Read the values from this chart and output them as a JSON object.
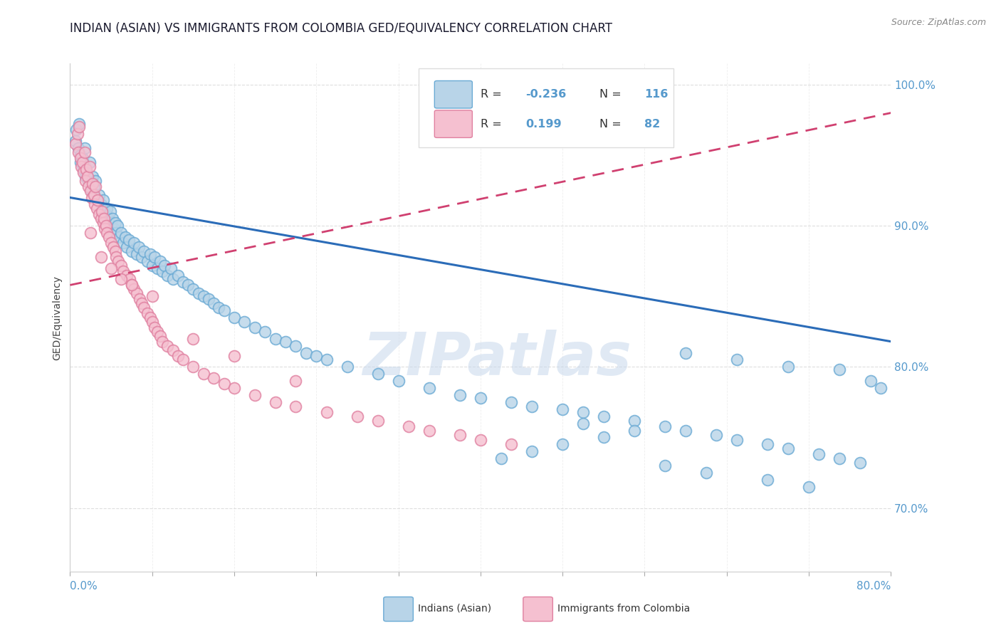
{
  "title": "INDIAN (ASIAN) VS IMMIGRANTS FROM COLOMBIA GED/EQUIVALENCY CORRELATION CHART",
  "source_text": "Source: ZipAtlas.com",
  "ylabel_label": "GED/Equivalency",
  "blue_label": "Indians (Asian)",
  "pink_label": "Immigrants from Colombia",
  "R_blue": "-0.236",
  "N_blue": "116",
  "R_pink": "0.199",
  "N_pink": "82",
  "blue_scatter_x": [
    0.005,
    0.006,
    0.008,
    0.009,
    0.01,
    0.01,
    0.012,
    0.013,
    0.014,
    0.015,
    0.015,
    0.016,
    0.018,
    0.019,
    0.02,
    0.021,
    0.022,
    0.023,
    0.025,
    0.025,
    0.027,
    0.028,
    0.03,
    0.031,
    0.032,
    0.033,
    0.035,
    0.036,
    0.037,
    0.039,
    0.04,
    0.041,
    0.043,
    0.044,
    0.045,
    0.046,
    0.048,
    0.05,
    0.052,
    0.054,
    0.055,
    0.057,
    0.06,
    0.062,
    0.065,
    0.067,
    0.07,
    0.072,
    0.075,
    0.078,
    0.08,
    0.082,
    0.085,
    0.088,
    0.09,
    0.092,
    0.095,
    0.098,
    0.1,
    0.105,
    0.11,
    0.115,
    0.12,
    0.125,
    0.13,
    0.135,
    0.14,
    0.145,
    0.15,
    0.16,
    0.17,
    0.18,
    0.19,
    0.2,
    0.21,
    0.22,
    0.23,
    0.24,
    0.25,
    0.27,
    0.3,
    0.32,
    0.35,
    0.38,
    0.4,
    0.43,
    0.45,
    0.48,
    0.5,
    0.52,
    0.55,
    0.58,
    0.6,
    0.63,
    0.65,
    0.68,
    0.7,
    0.73,
    0.75,
    0.77,
    0.6,
    0.65,
    0.7,
    0.75,
    0.78,
    0.79,
    0.5,
    0.55,
    0.52,
    0.48,
    0.45,
    0.42,
    0.58,
    0.62,
    0.68,
    0.72
  ],
  "blue_scatter_y": [
    0.96,
    0.968,
    0.955,
    0.972,
    0.95,
    0.945,
    0.948,
    0.94,
    0.955,
    0.935,
    0.942,
    0.938,
    0.932,
    0.945,
    0.93,
    0.925,
    0.935,
    0.928,
    0.92,
    0.932,
    0.918,
    0.922,
    0.915,
    0.912,
    0.918,
    0.91,
    0.908,
    0.912,
    0.905,
    0.91,
    0.9,
    0.905,
    0.898,
    0.902,
    0.895,
    0.9,
    0.892,
    0.895,
    0.888,
    0.892,
    0.885,
    0.89,
    0.882,
    0.888,
    0.88,
    0.885,
    0.878,
    0.882,
    0.875,
    0.88,
    0.872,
    0.878,
    0.87,
    0.875,
    0.868,
    0.872,
    0.865,
    0.87,
    0.862,
    0.865,
    0.86,
    0.858,
    0.855,
    0.852,
    0.85,
    0.848,
    0.845,
    0.842,
    0.84,
    0.835,
    0.832,
    0.828,
    0.825,
    0.82,
    0.818,
    0.815,
    0.81,
    0.808,
    0.805,
    0.8,
    0.795,
    0.79,
    0.785,
    0.78,
    0.778,
    0.775,
    0.772,
    0.77,
    0.768,
    0.765,
    0.762,
    0.758,
    0.755,
    0.752,
    0.748,
    0.745,
    0.742,
    0.738,
    0.735,
    0.732,
    0.81,
    0.805,
    0.8,
    0.798,
    0.79,
    0.785,
    0.76,
    0.755,
    0.75,
    0.745,
    0.74,
    0.735,
    0.73,
    0.725,
    0.72,
    0.715
  ],
  "pink_scatter_x": [
    0.005,
    0.007,
    0.008,
    0.009,
    0.01,
    0.011,
    0.012,
    0.013,
    0.014,
    0.015,
    0.016,
    0.017,
    0.018,
    0.019,
    0.02,
    0.021,
    0.022,
    0.023,
    0.024,
    0.025,
    0.026,
    0.027,
    0.028,
    0.03,
    0.031,
    0.032,
    0.033,
    0.034,
    0.035,
    0.036,
    0.038,
    0.04,
    0.042,
    0.044,
    0.045,
    0.047,
    0.05,
    0.052,
    0.055,
    0.058,
    0.06,
    0.062,
    0.065,
    0.068,
    0.07,
    0.072,
    0.075,
    0.078,
    0.08,
    0.082,
    0.085,
    0.088,
    0.09,
    0.095,
    0.1,
    0.105,
    0.11,
    0.12,
    0.13,
    0.14,
    0.15,
    0.16,
    0.18,
    0.2,
    0.22,
    0.25,
    0.28,
    0.3,
    0.33,
    0.35,
    0.38,
    0.4,
    0.43,
    0.22,
    0.16,
    0.12,
    0.08,
    0.06,
    0.04,
    0.02,
    0.03,
    0.05
  ],
  "pink_scatter_y": [
    0.958,
    0.965,
    0.952,
    0.97,
    0.948,
    0.942,
    0.945,
    0.938,
    0.952,
    0.932,
    0.94,
    0.935,
    0.928,
    0.942,
    0.925,
    0.92,
    0.93,
    0.922,
    0.915,
    0.928,
    0.912,
    0.918,
    0.908,
    0.905,
    0.91,
    0.902,
    0.905,
    0.898,
    0.9,
    0.895,
    0.892,
    0.888,
    0.885,
    0.882,
    0.878,
    0.875,
    0.872,
    0.868,
    0.865,
    0.862,
    0.858,
    0.855,
    0.852,
    0.848,
    0.845,
    0.842,
    0.838,
    0.835,
    0.832,
    0.828,
    0.825,
    0.822,
    0.818,
    0.815,
    0.812,
    0.808,
    0.805,
    0.8,
    0.795,
    0.792,
    0.788,
    0.785,
    0.78,
    0.775,
    0.772,
    0.768,
    0.765,
    0.762,
    0.758,
    0.755,
    0.752,
    0.748,
    0.745,
    0.79,
    0.808,
    0.82,
    0.85,
    0.858,
    0.87,
    0.895,
    0.878,
    0.862
  ],
  "blue_line_x": [
    0.0,
    0.8
  ],
  "blue_line_y": [
    0.92,
    0.818
  ],
  "pink_line_x": [
    0.0,
    0.8
  ],
  "pink_line_y": [
    0.858,
    0.98
  ],
  "xmin": 0.0,
  "xmax": 0.8,
  "ymin": 0.655,
  "ymax": 1.015,
  "ytick_vals": [
    0.7,
    0.8,
    0.9,
    1.0
  ],
  "watermark_text": "ZIPatlas",
  "dot_size": 130,
  "blue_fill": "#b8d4e8",
  "blue_edge": "#6aaad4",
  "pink_fill": "#f5c0d0",
  "pink_edge": "#e080a0",
  "blue_line_color": "#2b6cb8",
  "pink_line_color": "#d04070",
  "axis_tick_color": "#5599cc",
  "title_color": "#1a1a2e",
  "grid_color": "#c8c8c8",
  "background": "#ffffff",
  "title_fontsize": 12,
  "tick_fontsize": 11,
  "label_fontsize": 10,
  "source_fontsize": 9
}
